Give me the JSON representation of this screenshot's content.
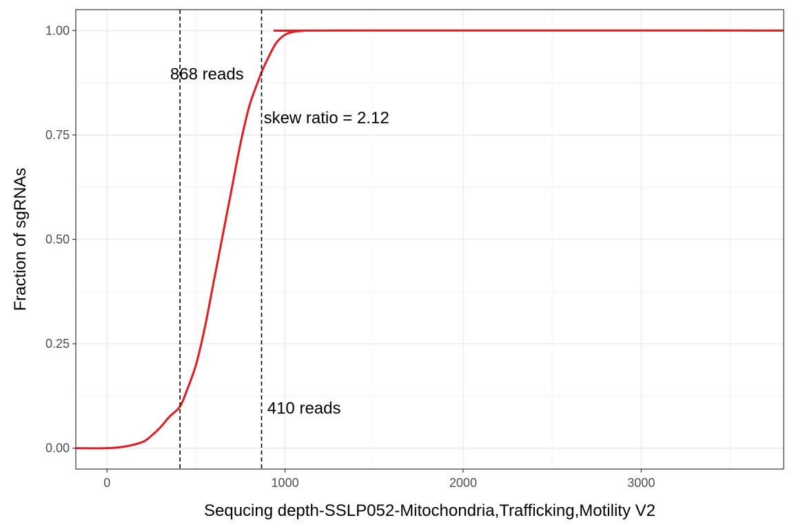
{
  "chart_data": {
    "type": "line",
    "title": "",
    "xlabel": "Sequcing depth-SSLP052-Mitochondria,Trafficking,Motility V2",
    "ylabel": "Fraction of sgRNAs",
    "xlim": [
      -175,
      3800
    ],
    "ylim": [
      -0.05,
      1.05
    ],
    "x_ticks": [
      0,
      1000,
      2000,
      3000
    ],
    "x_tick_labels": [
      "0",
      "1000",
      "2000",
      "3000"
    ],
    "y_ticks": [
      0,
      0.25,
      0.5,
      0.75,
      1.0
    ],
    "y_tick_labels": [
      "0.00",
      "0.25",
      "0.50",
      "0.75",
      "1.00"
    ],
    "grid": true,
    "series": [
      {
        "color": "#e41a1c",
        "x": [
          -175,
          0,
          100,
          200,
          250,
          300,
          350,
          410,
          450,
          500,
          550,
          600,
          650,
          700,
          750,
          800,
          850,
          868,
          900,
          950,
          1000,
          1050,
          1100,
          1150,
          3800
        ],
        "y": [
          0.0,
          0.0,
          0.004,
          0.015,
          0.03,
          0.05,
          0.075,
          0.1,
          0.14,
          0.2,
          0.29,
          0.4,
          0.51,
          0.62,
          0.73,
          0.82,
          0.88,
          0.9,
          0.93,
          0.97,
          0.99,
          0.997,
          0.999,
          1.0,
          1.0
        ]
      }
    ],
    "vlines": [
      {
        "x": 410,
        "style": "dashed",
        "color": "#000000"
      },
      {
        "x": 868,
        "style": "dashed",
        "color": "#000000"
      }
    ],
    "annotations": [
      {
        "text": "868 reads",
        "x": 355,
        "y": 0.895,
        "anchor": "start"
      },
      {
        "text": "skew ratio = 2.12",
        "x": 880,
        "y": 0.79,
        "anchor": "start"
      },
      {
        "text": "410 reads",
        "x": 900,
        "y": 0.095,
        "anchor": "start"
      }
    ]
  }
}
